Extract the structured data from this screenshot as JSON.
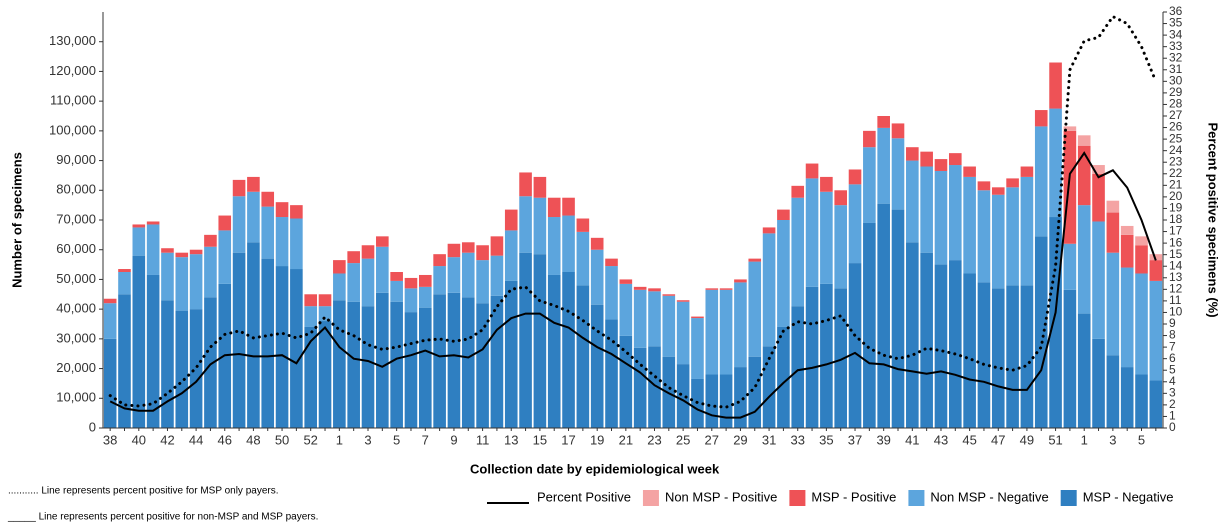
{
  "chart_data": {
    "type": "bar",
    "x_label": "Collection date by epidemiological week",
    "y_label": "Number of specimens",
    "y2_label": "Percent positive specimens (%)",
    "annotations": [
      "........... Line represents percent positive for MSP only payers.",
      "_____ Line represents percent positive for non-MSP and MSP payers."
    ],
    "categories": [
      "38",
      null,
      "40",
      null,
      "42",
      null,
      "44",
      null,
      "46",
      null,
      "48",
      null,
      "50",
      null,
      "52",
      null,
      "1",
      null,
      "3",
      null,
      "5",
      null,
      "7",
      null,
      "9",
      null,
      "11",
      null,
      "13",
      null,
      "15",
      null,
      "17",
      null,
      "19",
      null,
      "21",
      null,
      "23",
      null,
      "25",
      null,
      "27",
      null,
      "29",
      null,
      "31",
      null,
      "33",
      null,
      "35",
      null,
      "37",
      null,
      "39",
      null,
      "41",
      null,
      "43",
      null,
      "45",
      null,
      "47",
      null,
      "49",
      null,
      "51",
      null,
      "1",
      null,
      "3",
      null,
      "5",
      null
    ],
    "ylim": [
      0,
      140000
    ],
    "yticks": [
      0,
      {
        "value": 10000,
        "label": "10,000"
      },
      {
        "value": 20000,
        "label": "20,000"
      },
      {
        "value": 30000,
        "label": "30,000"
      },
      {
        "value": 40000,
        "label": "40,000"
      },
      {
        "value": 50000,
        "label": "50,000"
      },
      {
        "value": 60000,
        "label": "60,000"
      },
      {
        "value": 70000,
        "label": "70,000"
      },
      {
        "value": 80000,
        "label": "80,000"
      },
      {
        "value": 90000,
        "label": "90,000"
      },
      {
        "value": 100000,
        "label": "100,000"
      },
      {
        "value": 110000,
        "label": "110,000"
      },
      {
        "value": 120000,
        "label": "120,000"
      },
      {
        "value": 130000,
        "label": "130,000"
      }
    ],
    "y2lim": [
      0,
      36
    ],
    "y2ticks": [
      0,
      1,
      2,
      3,
      4,
      5,
      6,
      7,
      8,
      9,
      10,
      11,
      12,
      13,
      14,
      15,
      16,
      17,
      18,
      19,
      20,
      21,
      22,
      23,
      24,
      25,
      26,
      27,
      28,
      29,
      30,
      31,
      32,
      33,
      34,
      35,
      36
    ],
    "grid": false,
    "series": [
      {
        "name": "Percent Positive",
        "type": "line",
        "axis": "y2",
        "color": "#000000",
        "dash": "solid",
        "values": [
          2.3,
          1.7,
          1.5,
          1.5,
          2.3,
          3,
          4,
          5.5,
          6.3,
          6.4,
          6.2,
          6.2,
          6.3,
          5.6,
          7.5,
          8.7,
          7,
          6,
          5.8,
          5.3,
          6,
          6.3,
          6.7,
          6.2,
          6.3,
          6.1,
          6.8,
          8.5,
          9.5,
          9.9,
          9.9,
          9.1,
          8.7,
          7.8,
          7,
          6.4,
          5.6,
          4.8,
          3.7,
          3,
          2.4,
          1.6,
          1.1,
          0.9,
          0.9,
          1.4,
          2.7,
          3.9,
          5,
          5.2,
          5.5,
          5.9,
          6.5,
          5.6,
          5.5,
          5.1,
          4.9,
          4.7,
          4.9,
          4.6,
          4.2,
          4,
          3.6,
          3.3,
          3.3,
          5,
          10,
          22,
          23.8,
          21.7,
          22.3,
          20.8,
          18,
          14.5
        ]
      },
      {
        "type": "line",
        "axis": "y2",
        "color": "#000000",
        "dash": "dotted",
        "values": [
          2.8,
          2,
          1.9,
          2.1,
          3,
          4,
          5.2,
          7,
          8.1,
          8.4,
          7.8,
          8,
          8.2,
          7.8,
          8.2,
          9.6,
          8.5,
          8,
          7.2,
          6.8,
          7,
          7.3,
          7.6,
          7.7,
          7.5,
          7.7,
          8.5,
          10.5,
          12,
          12.2,
          11,
          10.6,
          10.1,
          9.3,
          8.4,
          7.6,
          6.6,
          5.5,
          4.5,
          3.5,
          2.8,
          2.2,
          1.9,
          1.8,
          2.3,
          3.5,
          6,
          8.4,
          9.2,
          9,
          9.3,
          9.7,
          8,
          6.9,
          6.3,
          6,
          6.3,
          6.9,
          6.7,
          6.4,
          6,
          5.5,
          5.2,
          5,
          5.4,
          7,
          14,
          31,
          33.5,
          33.8,
          35.6,
          35,
          33,
          30
        ]
      },
      {
        "name": "Non MSP - Positive",
        "type": "bar",
        "color": "#f4a3a3",
        "values": [
          0,
          0,
          0,
          0,
          0,
          0,
          0,
          0,
          0,
          0,
          0,
          0,
          0,
          0,
          0,
          0,
          0,
          0,
          0,
          0,
          0,
          0,
          0,
          0,
          0,
          0,
          0,
          0,
          0,
          0,
          0,
          0,
          0,
          0,
          0,
          0,
          0,
          0,
          0,
          0,
          0,
          0,
          0,
          0,
          0,
          0,
          0,
          0,
          0,
          0,
          0,
          0,
          0,
          0,
          0,
          0,
          0,
          0,
          0,
          0,
          0,
          0,
          0,
          0,
          0,
          0,
          0,
          1500,
          3500,
          3000,
          4000,
          3000,
          3000,
          2000
        ]
      },
      {
        "name": "MSP - Positive",
        "type": "bar",
        "color": "#ee5256",
        "values": [
          1500,
          1000,
          1000,
          1000,
          1500,
          1500,
          1500,
          4000,
          5000,
          5500,
          5000,
          5000,
          5000,
          4500,
          4000,
          4000,
          4500,
          4000,
          4500,
          3500,
          3000,
          3500,
          4000,
          4000,
          4500,
          3500,
          5000,
          6500,
          7000,
          8000,
          7000,
          6500,
          6000,
          4500,
          4000,
          2500,
          1500,
          1000,
          1000,
          500,
          500,
          500,
          500,
          500,
          1000,
          1000,
          2000,
          3500,
          4000,
          5000,
          5000,
          5000,
          5000,
          5500,
          4000,
          5000,
          4500,
          5000,
          4000,
          4000,
          3500,
          3000,
          2500,
          3000,
          3500,
          5500,
          15500,
          38000,
          20000,
          16000,
          13500,
          11000,
          9500,
          7000
        ]
      },
      {
        "name": "Non MSP - Negative",
        "type": "bar",
        "color": "#5ca5dd",
        "values": [
          12000,
          7500,
          9500,
          17000,
          16000,
          18000,
          18500,
          17000,
          18000,
          19000,
          17000,
          17500,
          16500,
          17000,
          7000,
          5000,
          9000,
          13000,
          16000,
          15500,
          7000,
          8000,
          7000,
          9500,
          12000,
          15000,
          14500,
          13500,
          17000,
          19000,
          19000,
          19500,
          19000,
          18000,
          18500,
          18000,
          17500,
          19500,
          18500,
          20500,
          21000,
          20500,
          28500,
          28500,
          28500,
          32000,
          38000,
          36000,
          36500,
          36500,
          31000,
          28000,
          26500,
          25500,
          25500,
          24000,
          27500,
          29000,
          31500,
          32000,
          32500,
          31000,
          31500,
          33000,
          36500,
          37000,
          36500,
          15500,
          36500,
          39500,
          34500,
          33500,
          34000,
          33500
        ]
      },
      {
        "name": "MSP - Negative",
        "type": "bar",
        "color": "#2f7fc1",
        "values": [
          30000,
          45000,
          58000,
          51500,
          43000,
          39500,
          40000,
          44000,
          48500,
          59000,
          62500,
          57000,
          54500,
          53500,
          34000,
          36000,
          43000,
          42500,
          41000,
          45500,
          42500,
          39000,
          40500,
          45000,
          45500,
          44000,
          42000,
          44500,
          49500,
          59000,
          58500,
          51500,
          52500,
          48000,
          41500,
          36500,
          31000,
          27000,
          27500,
          24000,
          21500,
          16500,
          18000,
          18000,
          20500,
          24000,
          27500,
          34000,
          41000,
          47500,
          48500,
          47000,
          55500,
          69000,
          75500,
          73500,
          62500,
          59000,
          55000,
          56500,
          52000,
          49000,
          47000,
          48000,
          48000,
          64500,
          71000,
          46500,
          38500,
          30000,
          24500,
          20500,
          18000,
          16000
        ]
      }
    ]
  }
}
